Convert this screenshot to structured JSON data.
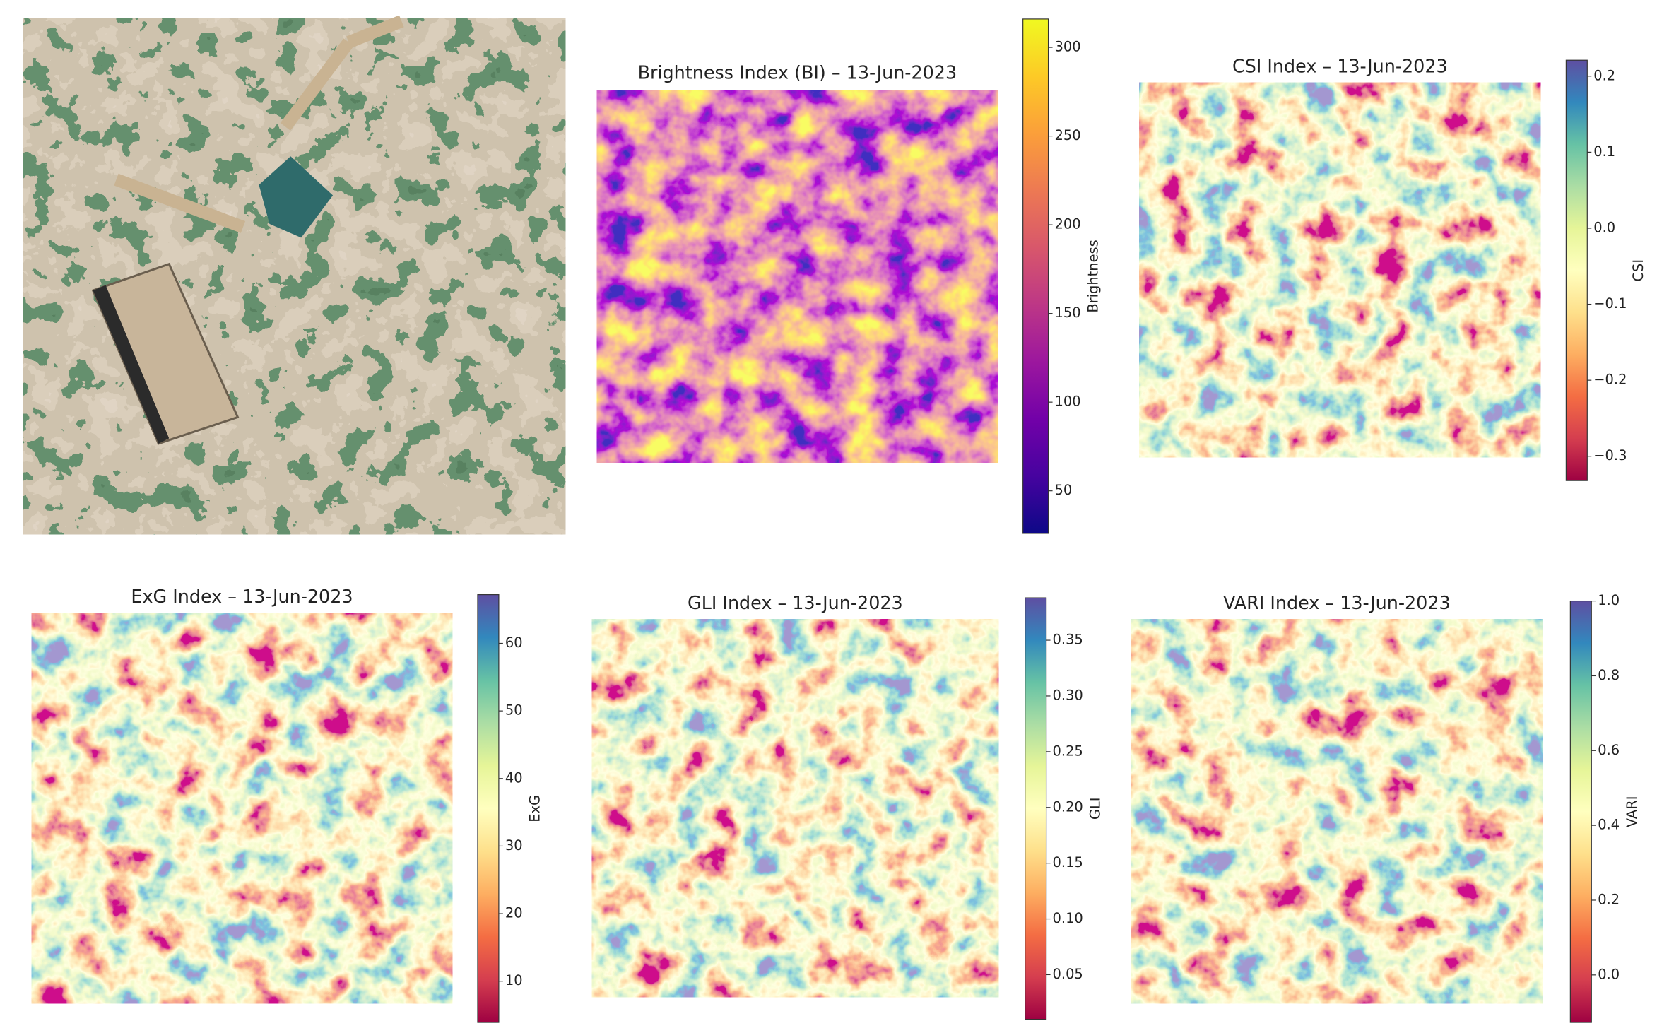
{
  "chart_data": [
    {
      "type": "heatmap",
      "title": "Brightness Index (BI) – 13-Jun-2023",
      "colorbar_label": "Brightness",
      "zlim": [
        26,
        316
      ],
      "zticks": [
        50,
        100,
        150,
        200,
        250,
        300
      ],
      "colormap": [
        "#0d0887",
        "#46039f",
        "#7201a8",
        "#9c179e",
        "#bd3786",
        "#d8576b",
        "#ed7953",
        "#fb9f3a",
        "#fdca26",
        "#f0f921"
      ]
    },
    {
      "type": "heatmap",
      "title": "CSI Index – 13-Jun-2023",
      "colorbar_label": "CSI",
      "zlim": [
        -0.332,
        0.221
      ],
      "zticks": [
        {
          "value": -0.3,
          "label": "−0.3"
        },
        {
          "value": -0.2,
          "label": "−0.2"
        },
        {
          "value": -0.1,
          "label": "−0.1"
        },
        {
          "value": 0,
          "label": "0.0"
        },
        0.1,
        0.2
      ],
      "colormap": [
        "#9e0142",
        "#d53e4f",
        "#f46d43",
        "#fdae61",
        "#fee08b",
        "#ffffbf",
        "#e6f598",
        "#abdda4",
        "#66c2a5",
        "#3288bd",
        "#5e4fa2"
      ]
    },
    {
      "type": "heatmap",
      "title": "ExG Index – 13-Jun-2023",
      "colorbar_label": "ExG",
      "zlim": [
        3.9,
        67.2
      ],
      "zticks": [
        10,
        20,
        30,
        40,
        50,
        60
      ],
      "colormap": [
        "#9e0142",
        "#d53e4f",
        "#f46d43",
        "#fdae61",
        "#fee08b",
        "#ffffbf",
        "#e6f598",
        "#abdda4",
        "#66c2a5",
        "#3288bd",
        "#5e4fa2"
      ]
    },
    {
      "type": "heatmap",
      "title": "GLI Index – 13-Jun-2023",
      "colorbar_label": "GLI",
      "zlim": [
        0.01,
        0.388
      ],
      "zticks": [
        0.05,
        {
          "value": 0.1,
          "label": "0.10"
        },
        0.15,
        {
          "value": 0.2,
          "label": "0.20"
        },
        0.25,
        {
          "value": 0.3,
          "label": "0.30"
        },
        0.35
      ],
      "colormap": [
        "#9e0142",
        "#d53e4f",
        "#f46d43",
        "#fdae61",
        "#fee08b",
        "#ffffbf",
        "#e6f598",
        "#abdda4",
        "#66c2a5",
        "#3288bd",
        "#5e4fa2"
      ]
    },
    {
      "type": "heatmap",
      "title": "VARI Index – 13-Jun-2023",
      "colorbar_label": "VARI",
      "zlim": [
        -0.127,
        1
      ],
      "zticks": [
        {
          "value": 0,
          "label": "0.0"
        },
        0.2,
        0.4,
        0.6,
        0.8,
        {
          "value": 1,
          "label": "1.0"
        }
      ],
      "colormap": [
        "#9e0142",
        "#d53e4f",
        "#f46d43",
        "#fdae61",
        "#fee08b",
        "#ffffbf",
        "#e6f598",
        "#abdda4",
        "#66c2a5",
        "#3288bd",
        "#5e4fa2"
      ]
    }
  ]
}
